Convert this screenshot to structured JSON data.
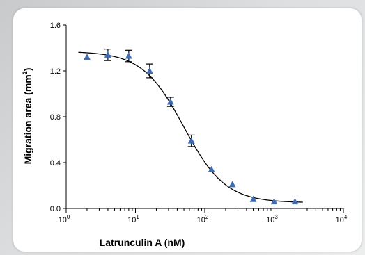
{
  "chart_data": {
    "type": "scatter",
    "title": "",
    "xlabel": "Latrunculin A (nM)",
    "ylabel_main": "Migration area (mm",
    "ylabel_sup": "2",
    "ylabel_close": ")",
    "xscale": "log",
    "xlim": [
      1,
      10000
    ],
    "ylim": [
      0,
      1.6
    ],
    "yticks": [
      0.0,
      0.4,
      0.8,
      1.2,
      1.6
    ],
    "ytick_labels": [
      "0.0",
      "0.4",
      "0.8",
      "1.2",
      "1.6"
    ],
    "xticks": [
      1,
      10,
      100,
      1000,
      10000
    ],
    "xtick_labels": [
      {
        "base": "10",
        "exp": "0"
      },
      {
        "base": "10",
        "exp": "1"
      },
      {
        "base": "10",
        "exp": "2"
      },
      {
        "base": "10",
        "exp": "3"
      },
      {
        "base": "10",
        "exp": "4"
      }
    ],
    "marker": "triangle",
    "marker_color": "#3d6cb3",
    "grid": false,
    "series": [
      {
        "x": [
          2,
          4,
          8,
          16,
          32,
          64,
          125,
          250,
          500,
          1000,
          2000
        ],
        "y": [
          1.32,
          1.34,
          1.33,
          1.2,
          0.93,
          0.59,
          0.34,
          0.21,
          0.08,
          0.06,
          0.06
        ],
        "error": [
          0,
          0.05,
          0.05,
          0.06,
          0.04,
          0.05,
          0,
          0,
          0,
          0,
          0
        ]
      }
    ],
    "fit": {
      "model": "four-parameter logistic",
      "top": 1.37,
      "bottom": 0.05,
      "ic50": 50,
      "hill": 1.45,
      "x_range": [
        1.5,
        2600
      ]
    }
  }
}
